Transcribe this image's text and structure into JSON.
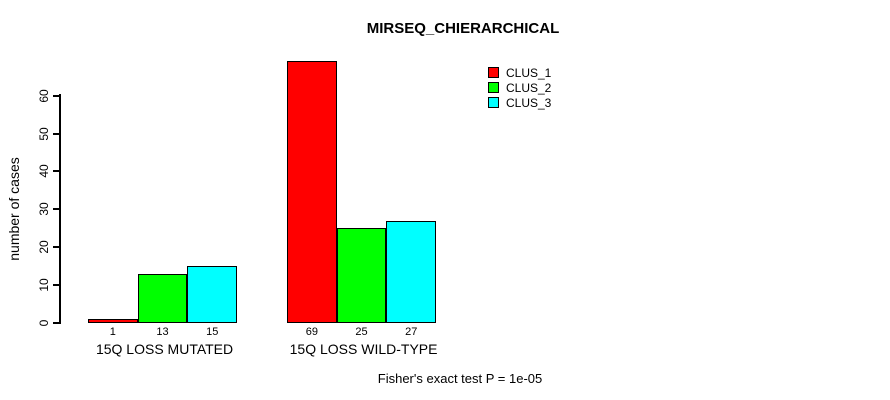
{
  "chart_data": {
    "type": "bar",
    "title": "MIRSEQ_CHIERARCHICAL",
    "xlabel": "",
    "ylabel": "number of cases",
    "categories": [
      "15Q LOSS MUTATED",
      "15Q LOSS WILD-TYPE"
    ],
    "series": [
      {
        "name": "CLUS_1",
        "color": "#ff0000",
        "values": [
          1,
          69
        ]
      },
      {
        "name": "CLUS_2",
        "color": "#00ff00",
        "values": [
          13,
          25
        ]
      },
      {
        "name": "CLUS_3",
        "color": "#00ffff",
        "values": [
          15,
          27
        ]
      }
    ],
    "bar_value_labels": [
      [
        "1",
        "13",
        "15"
      ],
      [
        "69",
        "25",
        "27"
      ]
    ],
    "yticks": [
      0,
      10,
      20,
      30,
      40,
      50,
      60
    ],
    "ylim": [
      0,
      60
    ],
    "grid": false,
    "legend_position": "top-right",
    "annotation": "Fisher's exact test P = 1e-05"
  },
  "colors": {
    "axis": "#000000",
    "background": "#ffffff",
    "text": "#000000"
  }
}
